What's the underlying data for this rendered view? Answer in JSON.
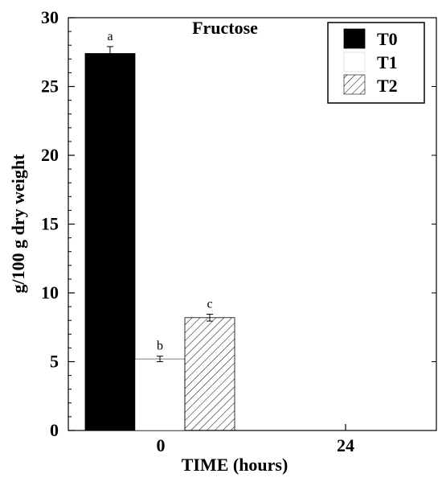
{
  "chart_data": {
    "type": "bar",
    "title": "Fructose",
    "xlabel": "TIME (hours)",
    "ylabel": "g/100 g dry weight",
    "categories": [
      "0",
      "24"
    ],
    "ylim": [
      0,
      30
    ],
    "yticks": [
      0,
      5,
      10,
      15,
      20,
      25,
      30
    ],
    "legend_position": "top-right",
    "grid": false,
    "series": [
      {
        "name": "T0",
        "values": [
          27.4,
          null
        ],
        "errors": [
          0.5,
          null
        ],
        "labels": [
          "a",
          null
        ],
        "fill": "#000000",
        "pattern": "solid"
      },
      {
        "name": "T1",
        "values": [
          5.2,
          null
        ],
        "errors": [
          0.2,
          null
        ],
        "labels": [
          "b",
          null
        ],
        "fill": "#ffffff",
        "pattern": "none"
      },
      {
        "name": "T2",
        "values": [
          8.2,
          null
        ],
        "errors": [
          0.25,
          null
        ],
        "labels": [
          "c",
          null
        ],
        "fill": "#ffffff",
        "pattern": "hatch"
      }
    ]
  }
}
